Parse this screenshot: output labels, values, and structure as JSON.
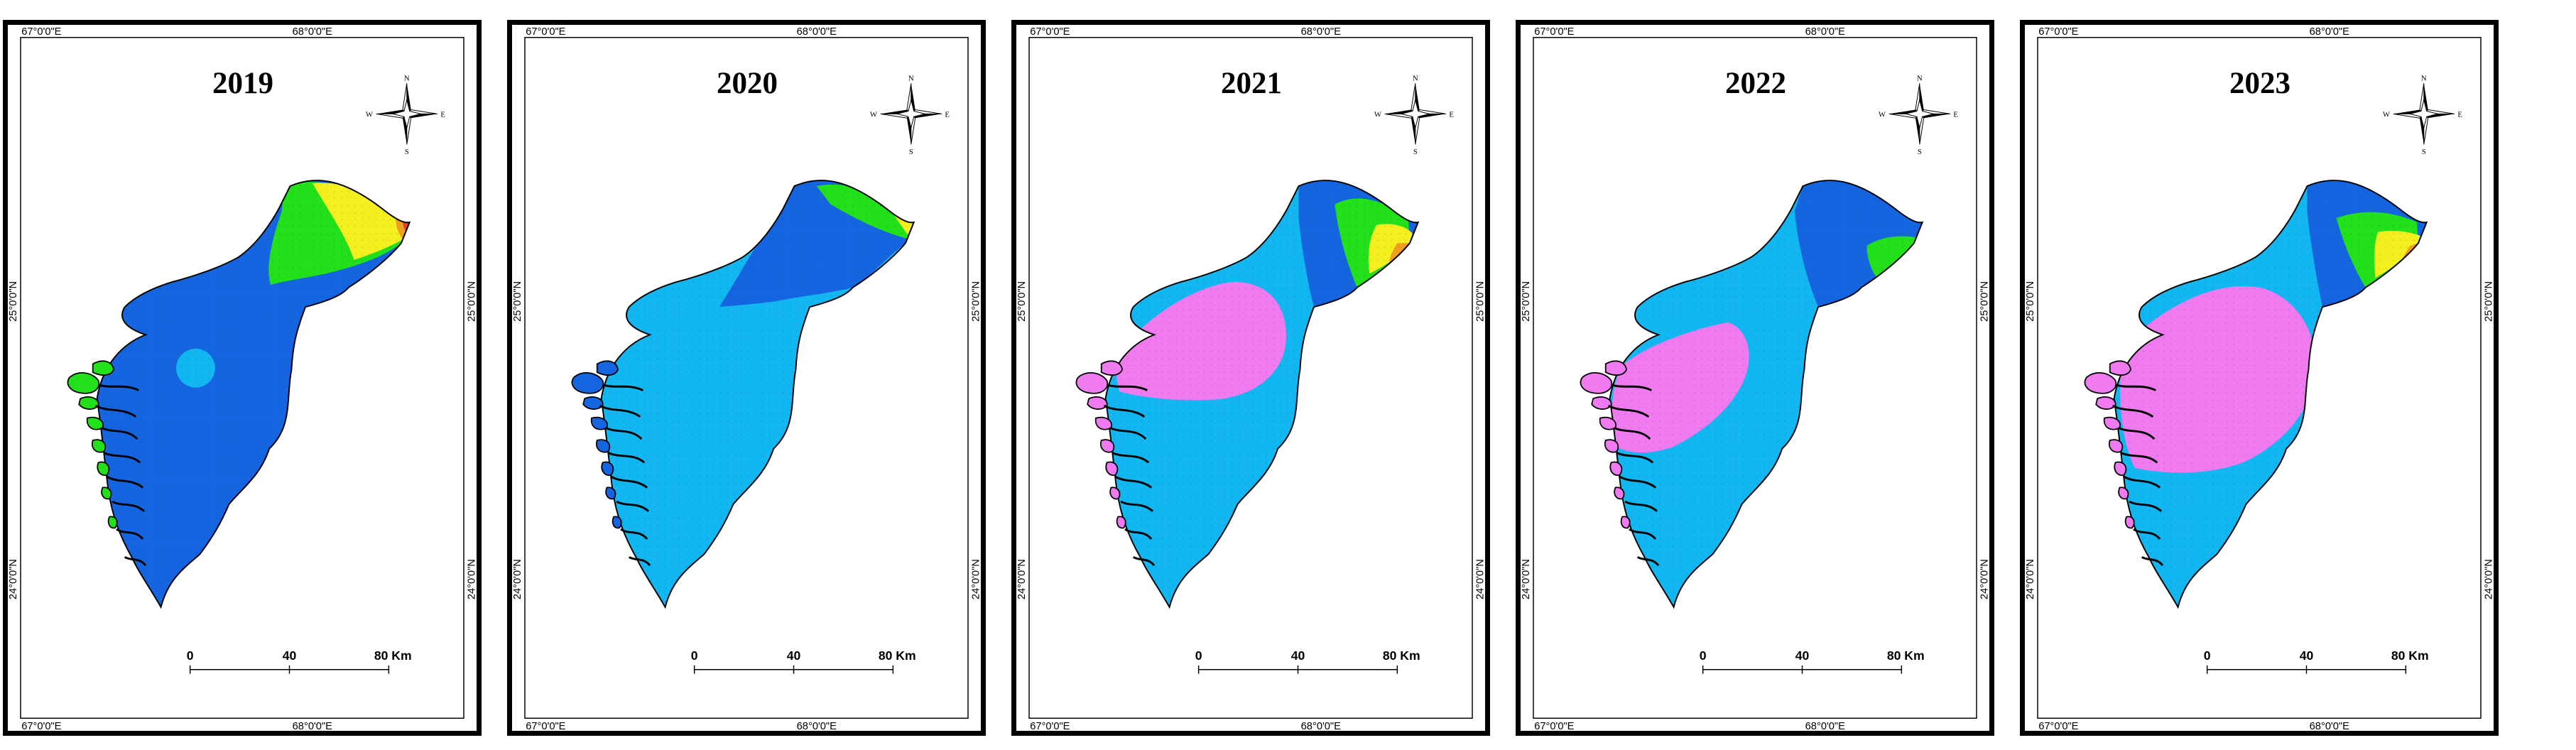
{
  "axes": {
    "top_left": "67°0'0\"E",
    "top_right": "68°0'0\"E",
    "bottom_left": "67°0'0\"E",
    "bottom_right": "68°0'0\"E",
    "lat_upper": "25°0'0\"N",
    "lat_lower": "24°0'0\"N"
  },
  "compass": {
    "north": "N",
    "south": "S",
    "east": "E",
    "west": "W"
  },
  "scale_bar": {
    "ticks": [
      "0",
      "40",
      "80 Km"
    ]
  },
  "colors": {
    "pink": "#f07af0",
    "light_blue": "#12b6f0",
    "blue": "#1565e0",
    "green": "#22e01a",
    "yellow": "#f4f020",
    "orange": "#f0a020",
    "red": "#e8402a"
  },
  "panels": [
    {
      "year": "2019",
      "base_zone": "blue",
      "zones": [
        "light_blue",
        "green",
        "yellow",
        "orange",
        "red"
      ]
    },
    {
      "year": "2020",
      "base_zone": "light_blue",
      "zones": [
        "blue",
        "green",
        "yellow"
      ]
    },
    {
      "year": "2021",
      "base_zone": "light_blue",
      "zones": [
        "pink",
        "blue",
        "green",
        "yellow",
        "orange"
      ]
    },
    {
      "year": "2022",
      "base_zone": "light_blue",
      "zones": [
        "pink",
        "blue",
        "green"
      ]
    },
    {
      "year": "2023",
      "base_zone": "light_blue",
      "zones": [
        "pink",
        "blue",
        "green",
        "yellow",
        "orange"
      ]
    }
  ]
}
